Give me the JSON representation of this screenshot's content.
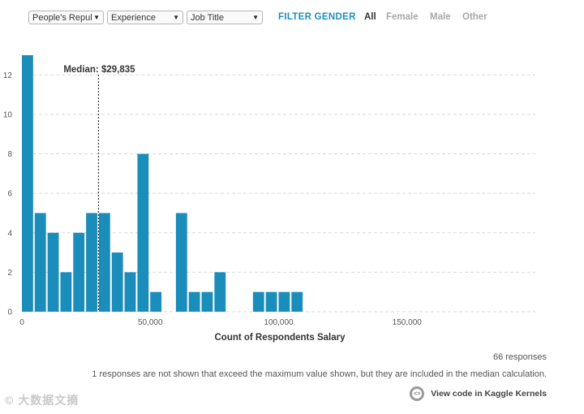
{
  "filters": {
    "country": "People's Repul",
    "experience": "Experience",
    "job_title": "Job Title",
    "gender_label": "FILTER GENDER",
    "gender_options": [
      "All",
      "Female",
      "Male",
      "Other"
    ],
    "gender_selected": "All"
  },
  "chart_data": {
    "type": "bar",
    "title": "",
    "xlabel": "Count of Respondents Salary",
    "ylabel": "",
    "xlim": [
      0,
      200000
    ],
    "ylim": [
      0,
      13
    ],
    "x_ticks": [
      0,
      50000,
      100000,
      150000
    ],
    "x_tick_labels": [
      "0",
      "50,000",
      "100,000",
      "150,000"
    ],
    "y_ticks": [
      0,
      2,
      4,
      6,
      8,
      10,
      12
    ],
    "y_tick_labels": [
      "0",
      "2",
      "4",
      "6",
      "8",
      "10",
      "12"
    ],
    "grid": "horizontal dashed",
    "bin_width": 5000,
    "bars": [
      {
        "x": 0,
        "count": 13
      },
      {
        "x": 5000,
        "count": 5
      },
      {
        "x": 10000,
        "count": 4
      },
      {
        "x": 15000,
        "count": 2
      },
      {
        "x": 20000,
        "count": 4
      },
      {
        "x": 25000,
        "count": 5
      },
      {
        "x": 30000,
        "count": 5
      },
      {
        "x": 35000,
        "count": 3
      },
      {
        "x": 40000,
        "count": 2
      },
      {
        "x": 45000,
        "count": 8
      },
      {
        "x": 50000,
        "count": 1
      },
      {
        "x": 60000,
        "count": 5
      },
      {
        "x": 65000,
        "count": 1
      },
      {
        "x": 70000,
        "count": 1
      },
      {
        "x": 75000,
        "count": 2
      },
      {
        "x": 90000,
        "count": 1
      },
      {
        "x": 95000,
        "count": 1
      },
      {
        "x": 100000,
        "count": 1
      },
      {
        "x": 105000,
        "count": 1
      }
    ],
    "median": {
      "value": 29835,
      "label": "Median: $29,835"
    },
    "color": "#1a8dbb"
  },
  "footer": {
    "responses": "66 responses",
    "note": "1 responses are not shown that exceed the maximum value shown, but they are included in the median calculation.",
    "kaggle_link": "View code in Kaggle Kernels",
    "kaggle_icon": "code-icon"
  },
  "watermark": "© 大数据文摘"
}
